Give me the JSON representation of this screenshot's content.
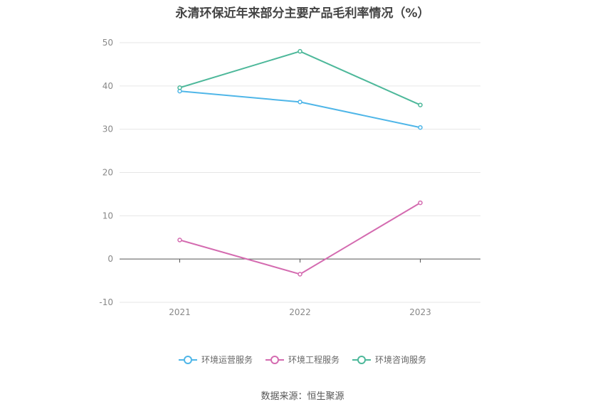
{
  "chart_data": {
    "type": "line",
    "title": "永清环保近年来部分主要产品毛利率情况（%）",
    "categories": [
      "2021",
      "2022",
      "2023"
    ],
    "ylim": [
      -10,
      50
    ],
    "yticks": [
      50,
      40,
      30,
      20,
      10,
      0,
      -10
    ],
    "grid": true,
    "legend_position": "bottom",
    "series": [
      {
        "name": "环境运营服务",
        "color": "#4fb6e8",
        "values": [
          38.8,
          36.3,
          30.4
        ]
      },
      {
        "name": "环境工程服务",
        "color": "#d46bb0",
        "values": [
          4.4,
          -3.5,
          13.0
        ]
      },
      {
        "name": "环境咨询服务",
        "color": "#4db89a",
        "values": [
          39.6,
          48.0,
          35.6
        ]
      }
    ],
    "source": "数据来源：恒生聚源"
  }
}
